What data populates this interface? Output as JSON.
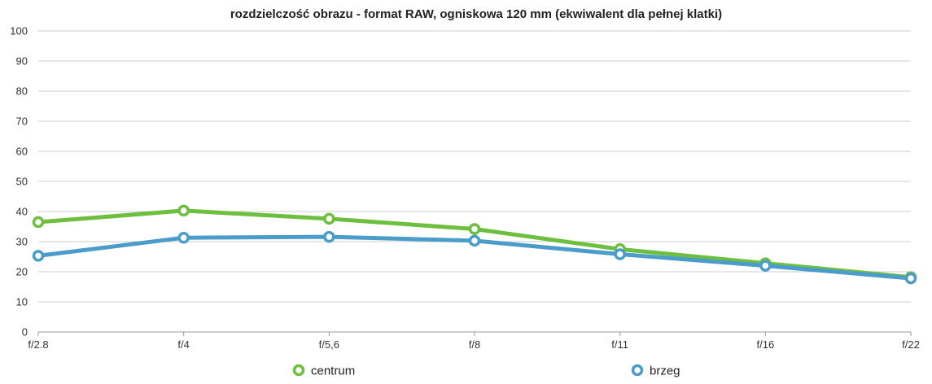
{
  "chart_data": {
    "type": "line",
    "title": "rozdzielczość obrazu - format RAW, ogniskowa 120 mm (ekwiwalent dla pełnej klatki)",
    "xlabel": "",
    "ylabel": "",
    "categories": [
      "f/2.8",
      "f/4",
      "f/5,6",
      "f/8",
      "f/11",
      "f/16",
      "f/22"
    ],
    "ylim": [
      0,
      100
    ],
    "yticks": [
      0,
      10,
      20,
      30,
      40,
      50,
      60,
      70,
      80,
      90,
      100
    ],
    "grid": true,
    "legend_position": "bottom",
    "series": [
      {
        "name": "centrum",
        "color": "#6cbf3f",
        "values": [
          36.5,
          40.3,
          37.6,
          34.2,
          27.5,
          22.8,
          18.2
        ]
      },
      {
        "name": "brzeg",
        "color": "#4a9ccb",
        "values": [
          25.3,
          31.3,
          31.6,
          30.3,
          25.8,
          22.0,
          17.8
        ]
      }
    ]
  }
}
